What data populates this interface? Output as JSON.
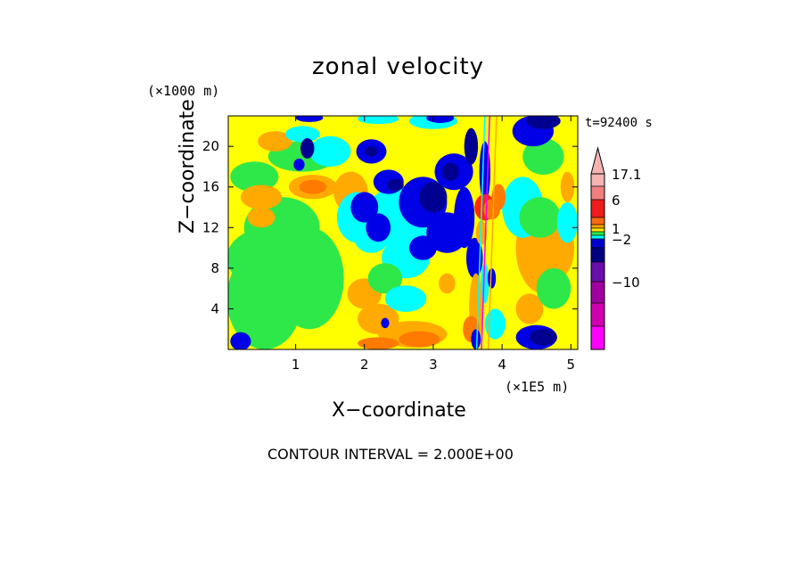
{
  "chart_data": {
    "type": "heatmap",
    "title": "zonal velocity",
    "time_label": "t=92400 s",
    "xlabel": "X−coordinate",
    "ylabel": "Z−coordinate",
    "x_unit": "(×1E5 m)",
    "y_unit": "(×1000 m)",
    "xlim": [
      0.02,
      5.1
    ],
    "ylim": [
      0,
      23
    ],
    "x_ticks": [
      1,
      2,
      3,
      4,
      5
    ],
    "y_ticks": [
      4,
      8,
      12,
      16,
      20
    ],
    "footer": "CONTOUR INTERVAL = 2.000E+00",
    "colorbar": {
      "labels": [
        "17.1",
        "6",
        "1",
        "−2",
        "−10"
      ],
      "levels_top_to_bottom": [
        {
          "color": "#f5b3b3"
        },
        {
          "color": "#f08080"
        },
        {
          "color": "#ee1c1c"
        },
        {
          "color": "#fb6a14"
        },
        {
          "color": "#fca402"
        },
        {
          "color": "#ffea00"
        },
        {
          "color": "#2ee84a"
        },
        {
          "color": "#00ffff"
        },
        {
          "color": "#0000cd"
        },
        {
          "color": "#000080"
        },
        {
          "color": "#6a0dad"
        },
        {
          "color": "#a000a0"
        },
        {
          "color": "#d000b0"
        },
        {
          "color": "#ff00ff"
        }
      ]
    },
    "palette": {
      "deep_blue": "#000090",
      "blue": "#0000e6",
      "cyan": "#00ffff",
      "green": "#2ee84a",
      "yellow": "#ffff00",
      "orange": "#ffaa00",
      "dark_orange": "#ff7a00",
      "red": "#ff2a00",
      "magenta": "#ff00ff"
    }
  }
}
